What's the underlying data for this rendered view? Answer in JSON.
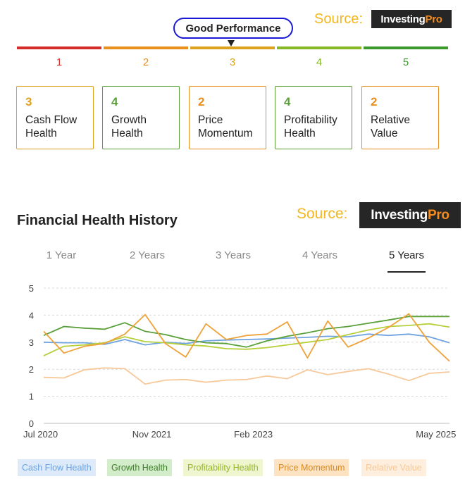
{
  "gauge": {
    "label": "Good Performance",
    "segments": [
      {
        "num": "1",
        "color": "#d62b2b"
      },
      {
        "num": "2",
        "color": "#e8901e"
      },
      {
        "num": "3",
        "color": "#dfa21c"
      },
      {
        "num": "4",
        "color": "#86b828"
      },
      {
        "num": "5",
        "color": "#3c9a2c"
      }
    ]
  },
  "source_top": {
    "label": "Source:",
    "brand_main": "Investing",
    "brand_pro": "Pro"
  },
  "source_mid": {
    "label": "Source:",
    "brand_main": "Investing",
    "brand_pro": "Pro"
  },
  "cards": [
    {
      "score": "3",
      "line1": "Cash Flow",
      "line2": "Health",
      "color": "#dfa21c"
    },
    {
      "score": "4",
      "line1": "Growth",
      "line2": "Health",
      "color": "#5a9e3a"
    },
    {
      "score": "2",
      "line1": "Price",
      "line2": "Momentum",
      "color": "#e8901e"
    },
    {
      "score": "4",
      "line1": "Profitability",
      "line2": "Health",
      "color": "#5a9e3a"
    },
    {
      "score": "2",
      "line1": "Relative",
      "line2": "Value",
      "color": "#e8901e"
    }
  ],
  "history": {
    "title": "Financial Health History",
    "tabs": [
      "1 Year",
      "2 Years",
      "3 Years",
      "4 Years",
      "5 Years"
    ],
    "active_tab": "5 Years"
  },
  "chart_data": {
    "type": "line",
    "x_tick_labels": [
      "Jul 2020",
      "Nov 2021",
      "Feb 2023",
      "May 2025"
    ],
    "x_ticks": [
      0,
      16,
      31,
      58
    ],
    "y_ticks": [
      0,
      1,
      2,
      3,
      4,
      5
    ],
    "ylim": [
      0,
      5
    ],
    "xlim": [
      0,
      60
    ],
    "grid": true,
    "legend_position": "bottom",
    "series": [
      {
        "name": "Cash Flow Health",
        "color": "#6fa3e0",
        "legend_bg": "#dceafa",
        "points": [
          [
            0,
            3.0
          ],
          [
            3,
            2.98
          ],
          [
            6,
            2.98
          ],
          [
            9,
            2.92
          ],
          [
            12,
            3.1
          ],
          [
            15,
            2.9
          ],
          [
            18,
            3.0
          ],
          [
            21,
            2.95
          ],
          [
            24,
            3.05
          ],
          [
            27,
            3.08
          ],
          [
            30,
            3.1
          ],
          [
            33,
            3.12
          ],
          [
            36,
            3.15
          ],
          [
            39,
            3.18
          ],
          [
            42,
            3.22
          ],
          [
            45,
            3.2
          ],
          [
            48,
            3.3
          ],
          [
            51,
            3.25
          ],
          [
            54,
            3.3
          ],
          [
            57,
            3.2
          ],
          [
            60,
            2.98
          ]
        ]
      },
      {
        "name": "Growth Health",
        "color": "#5aa03a",
        "legend_bg": "#d3ecc9",
        "points": [
          [
            0,
            3.25
          ],
          [
            3,
            3.58
          ],
          [
            6,
            3.52
          ],
          [
            9,
            3.48
          ],
          [
            12,
            3.72
          ],
          [
            15,
            3.4
          ],
          [
            18,
            3.28
          ],
          [
            21,
            3.1
          ],
          [
            24,
            2.98
          ],
          [
            27,
            2.95
          ],
          [
            30,
            2.82
          ],
          [
            33,
            3.05
          ],
          [
            36,
            3.22
          ],
          [
            39,
            3.35
          ],
          [
            42,
            3.5
          ],
          [
            45,
            3.58
          ],
          [
            48,
            3.7
          ],
          [
            51,
            3.82
          ],
          [
            54,
            3.95
          ],
          [
            57,
            3.95
          ],
          [
            60,
            3.95
          ]
        ]
      },
      {
        "name": "Profitability Health",
        "color": "#b6d03c",
        "legend_bg": "#eef5cf",
        "points": [
          [
            0,
            2.5
          ],
          [
            3,
            2.85
          ],
          [
            6,
            2.9
          ],
          [
            9,
            2.98
          ],
          [
            12,
            3.2
          ],
          [
            15,
            3.02
          ],
          [
            18,
            2.98
          ],
          [
            21,
            2.9
          ],
          [
            24,
            2.86
          ],
          [
            27,
            2.76
          ],
          [
            30,
            2.74
          ],
          [
            33,
            2.8
          ],
          [
            36,
            2.9
          ],
          [
            39,
            3.0
          ],
          [
            42,
            3.1
          ],
          [
            45,
            3.28
          ],
          [
            48,
            3.45
          ],
          [
            51,
            3.58
          ],
          [
            54,
            3.62
          ],
          [
            57,
            3.68
          ],
          [
            60,
            3.56
          ]
        ]
      },
      {
        "name": "Price Momentum",
        "color": "#eea23a",
        "legend_bg": "#fde3c2",
        "points": [
          [
            0,
            3.4
          ],
          [
            3,
            2.6
          ],
          [
            6,
            2.85
          ],
          [
            9,
            2.95
          ],
          [
            12,
            3.3
          ],
          [
            15,
            4.02
          ],
          [
            18,
            2.95
          ],
          [
            21,
            2.45
          ],
          [
            24,
            3.68
          ],
          [
            27,
            3.1
          ],
          [
            30,
            3.25
          ],
          [
            33,
            3.3
          ],
          [
            36,
            3.75
          ],
          [
            39,
            2.42
          ],
          [
            42,
            3.78
          ],
          [
            45,
            2.82
          ],
          [
            48,
            3.15
          ],
          [
            51,
            3.55
          ],
          [
            54,
            4.05
          ],
          [
            57,
            3.0
          ],
          [
            60,
            2.3
          ]
        ]
      },
      {
        "name": "Relative Value",
        "color": "#f7c99a",
        "legend_bg": "#fdeedd",
        "points": [
          [
            0,
            1.7
          ],
          [
            3,
            1.68
          ],
          [
            6,
            1.98
          ],
          [
            9,
            2.05
          ],
          [
            12,
            2.02
          ],
          [
            15,
            1.45
          ],
          [
            18,
            1.6
          ],
          [
            21,
            1.62
          ],
          [
            24,
            1.52
          ],
          [
            27,
            1.6
          ],
          [
            30,
            1.62
          ],
          [
            33,
            1.75
          ],
          [
            36,
            1.65
          ],
          [
            39,
            1.98
          ],
          [
            42,
            1.8
          ],
          [
            45,
            1.92
          ],
          [
            48,
            2.02
          ],
          [
            51,
            1.82
          ],
          [
            54,
            1.58
          ],
          [
            57,
            1.85
          ],
          [
            60,
            1.9
          ]
        ]
      }
    ]
  }
}
